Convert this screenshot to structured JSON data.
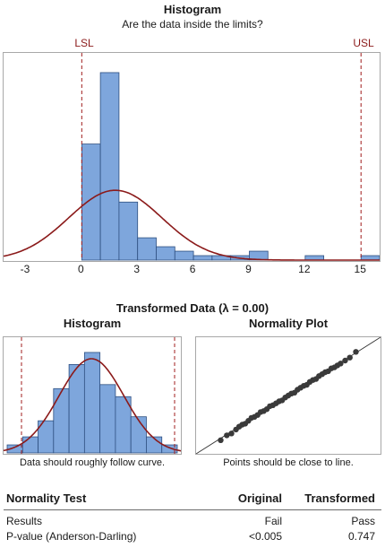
{
  "main_histogram": {
    "title": "Histogram",
    "subtitle": "Are the data inside the limits?",
    "lsl_label": "LSL",
    "usl_label": "USL",
    "x_ticks": [
      "-3",
      "0",
      "3",
      "6",
      "9",
      "12",
      "15"
    ]
  },
  "transformed": {
    "title": "Transformed Data (λ = 0.00)",
    "histogram_title": "Histogram",
    "histogram_caption": "Data should roughly follow curve.",
    "normality_title": "Normality Plot",
    "normality_caption": "Points should be close to line."
  },
  "normality_test": {
    "header_label": "Normality Test",
    "col_original": "Original",
    "col_transformed": "Transformed",
    "rows": [
      {
        "label": "Results",
        "original": "Fail",
        "transformed": "Pass"
      },
      {
        "label": "P-value (Anderson-Darling)",
        "original": "<0.005",
        "transformed": "0.747"
      }
    ]
  },
  "colors": {
    "bar_fill": "#7ea6dc",
    "bar_stroke": "#2e4f80",
    "curve": "#8b1a1a",
    "limit_line": "#a01c1c",
    "points": "#3a3a3a"
  },
  "chart_data": [
    {
      "type": "bar",
      "subtype": "histogram",
      "title": "Histogram",
      "subtitle": "Are the data inside the limits?",
      "bin_width": 1,
      "bin_starts": [
        0,
        1,
        2,
        3,
        4,
        5,
        6,
        7,
        8,
        9,
        10,
        11,
        12,
        13,
        14,
        15
      ],
      "values": [
        26,
        42,
        13,
        5,
        3,
        2,
        1,
        1,
        1,
        2,
        0,
        0,
        1,
        0,
        0,
        1
      ],
      "xlim": [
        -4.2,
        16
      ],
      "x_ticks": [
        -3,
        0,
        3,
        6,
        9,
        12,
        15
      ],
      "ylim": [
        0,
        44
      ],
      "lsl": 0,
      "usl": 15,
      "fitted_curve": {
        "mean": 1.8,
        "sd": 2.5
      },
      "grid": false
    },
    {
      "type": "bar",
      "subtype": "histogram",
      "title": "Histogram",
      "values": [
        2,
        4,
        8,
        16,
        22,
        25,
        17,
        14,
        9,
        4,
        2
      ],
      "ylim": [
        0,
        27
      ],
      "fitted_curve": "normal",
      "grid": false
    },
    {
      "type": "scatter",
      "title": "Normality Plot",
      "x": [
        -2.2,
        -2.0,
        -1.85,
        -1.7,
        -1.6,
        -1.5,
        -1.4,
        -1.3,
        -1.2,
        -1.1,
        -1.0,
        -0.9,
        -0.8,
        -0.7,
        -0.6,
        -0.5,
        -0.4,
        -0.3,
        -0.2,
        -0.1,
        0.0,
        0.1,
        0.2,
        0.3,
        0.4,
        0.5,
        0.6,
        0.7,
        0.8,
        0.9,
        1.0,
        1.1,
        1.2,
        1.3,
        1.4,
        1.5,
        1.6,
        1.7,
        1.85,
        2.0,
        2.2
      ],
      "y": [
        -2.3,
        -2.05,
        -1.95,
        -1.75,
        -1.6,
        -1.5,
        -1.45,
        -1.3,
        -1.15,
        -1.1,
        -1.0,
        -0.85,
        -0.8,
        -0.7,
        -0.55,
        -0.5,
        -0.4,
        -0.3,
        -0.25,
        -0.1,
        0.0,
        0.1,
        0.15,
        0.3,
        0.4,
        0.5,
        0.55,
        0.7,
        0.8,
        0.85,
        1.0,
        1.1,
        1.2,
        1.25,
        1.4,
        1.45,
        1.55,
        1.65,
        1.8,
        1.95,
        2.25
      ],
      "xlim": [
        -3,
        3
      ],
      "ylim": [
        -3,
        3
      ],
      "reference_line": true,
      "grid": false
    }
  ]
}
